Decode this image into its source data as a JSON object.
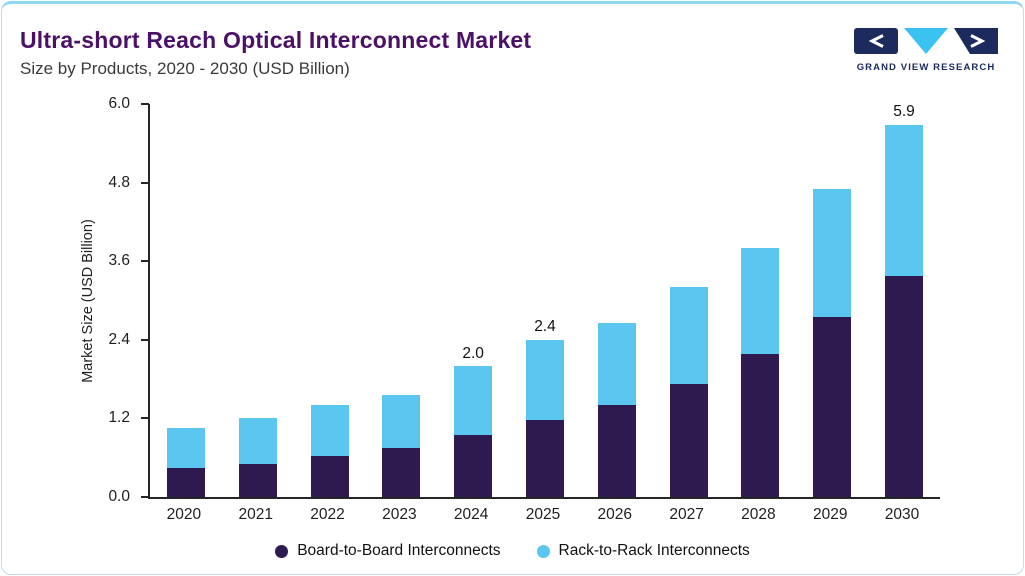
{
  "page": {
    "title": "Ultra-short Reach Optical Interconnect Market",
    "subtitle": "Size by Products, 2020 - 2030 (USD Billion)"
  },
  "logo": {
    "text": "GRAND VIEW RESEARCH",
    "navy": "#1c2a5e",
    "cyan": "#3ac2f0"
  },
  "chart_data": {
    "type": "bar",
    "stacked": true,
    "title": "Ultra-short Reach Optical Interconnect Market",
    "subtitle": "Size by Products, 2020 - 2030 (USD Billion)",
    "xlabel": "",
    "ylabel": "Market Size (USD Billion)",
    "ylim": [
      0,
      6.0
    ],
    "yticks": [
      0.0,
      1.2,
      2.4,
      3.6,
      4.8,
      6.0
    ],
    "grid": false,
    "legend_position": "bottom",
    "categories": [
      "2020",
      "2021",
      "2022",
      "2023",
      "2024",
      "2025",
      "2026",
      "2027",
      "2028",
      "2029",
      "2030"
    ],
    "series": [
      {
        "name": "Board-to-Board Interconnects",
        "color": "#2E1950",
        "values": [
          0.45,
          0.5,
          0.62,
          0.75,
          0.95,
          1.18,
          1.4,
          1.72,
          2.18,
          2.75,
          3.5
        ]
      },
      {
        "name": "Rack-to-Rack Interconnects",
        "color": "#5BC6F0",
        "values": [
          0.6,
          0.7,
          0.78,
          0.8,
          1.05,
          1.22,
          1.25,
          1.48,
          1.62,
          1.95,
          2.4
        ]
      }
    ],
    "totals": [
      1.05,
      1.2,
      1.4,
      1.55,
      2.0,
      2.4,
      2.65,
      3.2,
      3.8,
      4.7,
      5.9
    ],
    "data_labels": {
      "2024": "2.0",
      "2025": "2.4",
      "2030": "5.9"
    }
  }
}
